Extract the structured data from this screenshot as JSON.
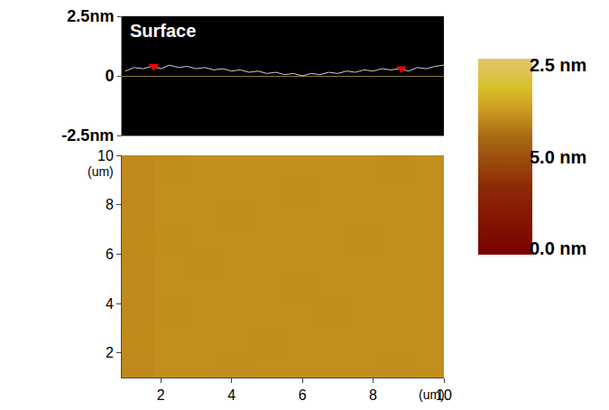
{
  "chart_data": [
    {
      "type": "line",
      "title": "Surface",
      "x": [
        1.0,
        1.25,
        1.5,
        1.75,
        2.0,
        2.25,
        2.5,
        2.75,
        3.0,
        3.25,
        3.5,
        3.75,
        4.0,
        4.25,
        4.5,
        4.75,
        5.0,
        5.25,
        5.5,
        5.75,
        6.0,
        6.25,
        6.5,
        6.75,
        7.0,
        7.25,
        7.5,
        7.75,
        8.0,
        8.25,
        8.5,
        8.75,
        9.0,
        9.25,
        9.5,
        9.75,
        10.0
      ],
      "values": [
        0.2,
        0.35,
        0.3,
        0.4,
        0.3,
        0.45,
        0.35,
        0.4,
        0.3,
        0.35,
        0.25,
        0.3,
        0.2,
        0.25,
        0.15,
        0.2,
        0.1,
        0.15,
        0.05,
        0.1,
        0.0,
        0.1,
        0.05,
        0.15,
        0.1,
        0.2,
        0.15,
        0.25,
        0.2,
        0.3,
        0.25,
        0.3,
        0.2,
        0.35,
        0.3,
        0.4,
        0.45
      ],
      "color": "#d0d0d0",
      "cursors": {
        "x": [
          1.8,
          8.8
        ],
        "values": [
          0.4,
          0.3
        ],
        "color": "#ff0000"
      },
      "xlim": [
        0.9,
        10
      ],
      "ylim": [
        -2.5,
        2.5
      ],
      "yticks": [
        {
          "value": 2.5,
          "label": "2.5nm"
        },
        0,
        {
          "value": -2.5,
          "label": "-2.5nm"
        }
      ],
      "grid": true,
      "tick_labels": "y"
    },
    {
      "type": "heatmap",
      "x": [
        1.355,
        2.265,
        3.175,
        4.085,
        4.995,
        5.905,
        6.815,
        7.725,
        8.635,
        9.545
      ],
      "y": [
        1.5,
        2.5,
        3.5,
        4.5,
        5.5,
        6.5,
        7.5,
        8.5,
        9.5
      ],
      "z": [
        [
          3.45,
          3.5,
          3.5,
          3.48,
          3.5,
          3.52,
          3.5,
          3.5,
          3.48,
          3.5
        ],
        [
          3.46,
          3.5,
          3.52,
          3.5,
          3.48,
          3.5,
          3.5,
          3.52,
          3.5,
          3.5
        ],
        [
          3.45,
          3.48,
          3.5,
          3.5,
          3.5,
          3.5,
          3.48,
          3.5,
          3.5,
          3.52
        ],
        [
          3.44,
          3.5,
          3.5,
          3.52,
          3.5,
          3.48,
          3.5,
          3.5,
          3.52,
          3.5
        ],
        [
          3.45,
          3.5,
          3.48,
          3.5,
          3.5,
          3.5,
          3.52,
          3.5,
          3.5,
          3.5
        ],
        [
          3.46,
          3.48,
          3.5,
          3.5,
          3.52,
          3.5,
          3.5,
          3.48,
          3.5,
          3.52
        ],
        [
          3.45,
          3.5,
          3.5,
          3.48,
          3.5,
          3.5,
          3.5,
          3.5,
          3.52,
          3.5
        ],
        [
          3.44,
          3.5,
          3.52,
          3.5,
          3.5,
          3.48,
          3.5,
          3.5,
          3.5,
          3.5
        ],
        [
          3.45,
          3.48,
          3.5,
          3.5,
          3.5,
          3.5,
          3.52,
          3.5,
          3.48,
          3.5
        ]
      ],
      "xlim": [
        0.9,
        10
      ],
      "ylim": [
        1,
        10
      ],
      "xticks": [
        2,
        4,
        6,
        8,
        10
      ],
      "yticks": [
        2,
        4,
        6,
        8,
        10
      ],
      "xlabel": "(um)",
      "ylabel": "(um)",
      "colorbar": {
        "range": [
          0,
          5
        ],
        "labels": [
          "2.5 nm",
          "5.0 nm",
          "0.0 nm"
        ]
      }
    }
  ]
}
